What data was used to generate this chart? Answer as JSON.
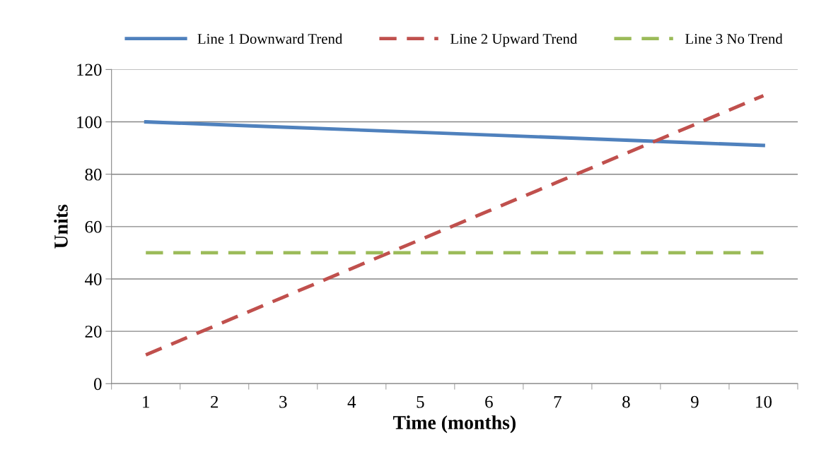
{
  "chart_data": {
    "type": "line",
    "xlabel": "Time (months)",
    "ylabel": "Units",
    "categories": [
      "1",
      "2",
      "3",
      "4",
      "5",
      "6",
      "7",
      "8",
      "9",
      "10"
    ],
    "series": [
      {
        "name": "Line 1 Downward Trend",
        "color": "#4f81bd",
        "line_style": "solid",
        "values": [
          100,
          99,
          98,
          97,
          96,
          95,
          94,
          93,
          92,
          91
        ]
      },
      {
        "name": "Line 2 Upward Trend",
        "color": "#c0504d",
        "line_style": "dashed",
        "values": [
          11,
          22,
          33,
          44,
          55,
          66,
          77,
          88,
          99,
          110
        ]
      },
      {
        "name": "Line 3 No Trend",
        "color": "#9bbb59",
        "line_style": "dashed",
        "values": [
          50,
          50,
          50,
          50,
          50,
          50,
          50,
          50,
          50,
          50
        ]
      }
    ],
    "ylim": [
      0,
      120
    ],
    "yticks": [
      0,
      20,
      40,
      60,
      80,
      100,
      120
    ],
    "grid": "y",
    "legend": "top",
    "marker": "none"
  }
}
